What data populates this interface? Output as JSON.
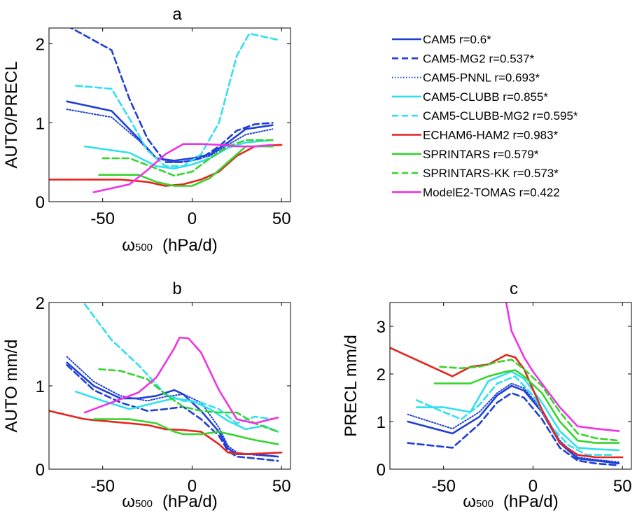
{
  "figure": {
    "legend": [
      {
        "label": "CAM5 r=0.6*",
        "color": "#1f3fd6",
        "style": "solid"
      },
      {
        "label": "CAM5-MG2 r=0.537*",
        "color": "#1f3fd6",
        "style": "dashed"
      },
      {
        "label": "CAM5-PNNL r=0.693*",
        "color": "#1f3fd6",
        "style": "dotted"
      },
      {
        "label": "CAM5-CLUBB r=0.855*",
        "color": "#2fe0f0",
        "style": "solid"
      },
      {
        "label": "CAM5-CLUBB-MG2 r=0.595*",
        "color": "#2fe0f0",
        "style": "dashed"
      },
      {
        "label": "ECHAM6-HAM2 r=0.983*",
        "color": "#e8231e",
        "style": "solid"
      },
      {
        "label": "SPRINTARS r=0.579*",
        "color": "#35d52c",
        "style": "solid"
      },
      {
        "label": "SPRINTARS-KK r=0.573*",
        "color": "#35d52c",
        "style": "dashed"
      },
      {
        "label": "ModelE2-TOMAS r=0.422",
        "color": "#f032e6",
        "style": "solid"
      }
    ]
  },
  "chart_data": [
    {
      "panel": "a",
      "type": "line",
      "title": "a",
      "xlabel_symbol": "ω",
      "xlabel_sub": "500",
      "xlabel_unit": "(hPa/d)",
      "ylabel": "AUTO/PRECL",
      "xlim": [
        -80,
        55
      ],
      "ylim": [
        0,
        2.2
      ],
      "xticks": [
        -50,
        0,
        50
      ],
      "yticks": [
        0,
        1,
        2
      ],
      "series": [
        {
          "name": "CAM5 r=0.6*",
          "x": [
            -70,
            -45,
            -30,
            -20,
            -10,
            0,
            10,
            20,
            30,
            45
          ],
          "y": [
            1.27,
            1.15,
            0.8,
            0.55,
            0.52,
            0.55,
            0.6,
            0.75,
            0.92,
            0.97
          ]
        },
        {
          "name": "CAM5-MG2 r=0.537*",
          "x": [
            -70,
            -45,
            -35,
            -25,
            -15,
            -5,
            5,
            15,
            25,
            35,
            45
          ],
          "y": [
            2.23,
            1.92,
            1.3,
            0.8,
            0.5,
            0.5,
            0.55,
            0.7,
            0.9,
            0.98,
            1.0
          ]
        },
        {
          "name": "CAM5-PNNL r=0.693*",
          "x": [
            -70,
            -45,
            -30,
            -20,
            -10,
            0,
            10,
            20,
            30,
            45
          ],
          "y": [
            1.17,
            1.07,
            0.78,
            0.55,
            0.5,
            0.52,
            0.58,
            0.72,
            0.85,
            0.92
          ]
        },
        {
          "name": "CAM5-CLUBB r=0.855*",
          "x": [
            -60,
            -35,
            -20,
            -10,
            0,
            10,
            20,
            30,
            45
          ],
          "y": [
            0.7,
            0.62,
            0.45,
            0.42,
            0.47,
            0.55,
            0.68,
            0.75,
            0.78
          ]
        },
        {
          "name": "CAM5-CLUBB-MG2 r=0.595*",
          "x": [
            -65,
            -45,
            -35,
            -25,
            -15,
            -5,
            5,
            15,
            25,
            32,
            48
          ],
          "y": [
            1.47,
            1.43,
            1.05,
            0.65,
            0.45,
            0.45,
            0.6,
            1.0,
            1.85,
            2.13,
            2.05
          ]
        },
        {
          "name": "ECHAM6-HAM2 r=0.983*",
          "x": [
            -80,
            -55,
            -40,
            -25,
            -15,
            -5,
            5,
            15,
            25,
            35,
            50
          ],
          "y": [
            0.28,
            0.28,
            0.28,
            0.25,
            0.2,
            0.22,
            0.28,
            0.38,
            0.58,
            0.7,
            0.72
          ]
        },
        {
          "name": "SPRINTARS r=0.579*",
          "x": [
            -52,
            -30,
            -20,
            -10,
            0,
            10,
            20,
            30,
            45
          ],
          "y": [
            0.34,
            0.34,
            0.25,
            0.2,
            0.2,
            0.3,
            0.5,
            0.7,
            0.7
          ]
        },
        {
          "name": "SPRINTARS-KK r=0.573*",
          "x": [
            -50,
            -35,
            -20,
            -10,
            0,
            10,
            20,
            30,
            45
          ],
          "y": [
            0.55,
            0.55,
            0.42,
            0.33,
            0.38,
            0.55,
            0.7,
            0.78,
            0.78
          ]
        },
        {
          "name": "ModelE2-TOMAS r=0.422",
          "x": [
            -55,
            -35,
            -25,
            -15,
            -5,
            5,
            15,
            25,
            35,
            45
          ],
          "y": [
            0.12,
            0.22,
            0.4,
            0.6,
            0.73,
            0.73,
            0.72,
            0.7,
            0.7,
            0.72
          ]
        }
      ]
    },
    {
      "panel": "b",
      "type": "line",
      "title": "b",
      "xlabel_symbol": "ω",
      "xlabel_sub": "500",
      "xlabel_unit": "(hPa/d)",
      "ylabel": "AUTO mm/d",
      "xlim": [
        -80,
        55
      ],
      "ylim": [
        0,
        2
      ],
      "xticks": [
        -50,
        0,
        50
      ],
      "yticks": [
        0,
        1,
        2
      ],
      "series": [
        {
          "name": "CAM5 r=0.6*",
          "x": [
            -70,
            -55,
            -40,
            -30,
            -20,
            -10,
            -5,
            5,
            15,
            20,
            25,
            35,
            48
          ],
          "y": [
            1.28,
            1.0,
            0.85,
            0.85,
            0.88,
            0.95,
            0.9,
            0.7,
            0.45,
            0.25,
            0.18,
            0.18,
            0.15
          ]
        },
        {
          "name": "CAM5-MG2 r=0.537*",
          "x": [
            -70,
            -55,
            -40,
            -25,
            -15,
            -5,
            5,
            15,
            20,
            25,
            35,
            48
          ],
          "y": [
            1.25,
            0.95,
            0.8,
            0.7,
            0.72,
            0.75,
            0.6,
            0.4,
            0.22,
            0.15,
            0.13,
            0.1
          ]
        },
        {
          "name": "CAM5-PNNL r=0.693*",
          "x": [
            -70,
            -55,
            -40,
            -25,
            -15,
            -5,
            5,
            15,
            20,
            25,
            35,
            48
          ],
          "y": [
            1.35,
            1.05,
            0.88,
            0.82,
            0.87,
            0.9,
            0.8,
            0.5,
            0.28,
            0.2,
            0.17,
            0.15
          ]
        },
        {
          "name": "CAM5-CLUBB r=0.855*",
          "x": [
            -65,
            -50,
            -35,
            -20,
            -10,
            0,
            10,
            20,
            30,
            40,
            48
          ],
          "y": [
            0.93,
            0.82,
            0.72,
            0.8,
            0.85,
            0.82,
            0.72,
            0.58,
            0.48,
            0.52,
            0.45
          ]
        },
        {
          "name": "CAM5-CLUBB-MG2 r=0.595*",
          "x": [
            -60,
            -45,
            -30,
            -15,
            -5,
            5,
            15,
            25,
            35,
            45
          ],
          "y": [
            1.98,
            1.55,
            1.25,
            0.9,
            0.82,
            0.8,
            0.72,
            0.55,
            0.63,
            0.6
          ]
        },
        {
          "name": "ECHAM6-HAM2 r=0.983*",
          "x": [
            -80,
            -60,
            -45,
            -35,
            -25,
            -15,
            -5,
            5,
            15,
            20,
            30,
            50
          ],
          "y": [
            0.7,
            0.6,
            0.57,
            0.55,
            0.53,
            0.48,
            0.47,
            0.45,
            0.3,
            0.2,
            0.18,
            0.2
          ]
        },
        {
          "name": "SPRINTARS r=0.579*",
          "x": [
            -55,
            -35,
            -20,
            -10,
            -5,
            5,
            15,
            25,
            35,
            48
          ],
          "y": [
            0.6,
            0.6,
            0.55,
            0.45,
            0.42,
            0.42,
            0.45,
            0.4,
            0.35,
            0.3
          ]
        },
        {
          "name": "SPRINTARS-KK r=0.573*",
          "x": [
            -52,
            -40,
            -25,
            -15,
            -5,
            5,
            15,
            25,
            35,
            48
          ],
          "y": [
            1.2,
            1.18,
            1.08,
            0.9,
            0.75,
            0.7,
            0.68,
            0.68,
            0.55,
            0.45
          ]
        },
        {
          "name": "ModelE2-TOMAS r=0.422",
          "x": [
            -60,
            -45,
            -30,
            -20,
            -10,
            -7,
            -2,
            5,
            15,
            25,
            35,
            48
          ],
          "y": [
            0.68,
            0.8,
            0.92,
            1.1,
            1.45,
            1.58,
            1.57,
            1.4,
            0.95,
            0.6,
            0.55,
            0.62
          ]
        }
      ]
    },
    {
      "panel": "c",
      "type": "line",
      "title": "c",
      "xlabel_symbol": "ω",
      "xlabel_sub": "500",
      "xlabel_unit": "(hPa/d)",
      "ylabel": "PRECL mm/d",
      "xlim": [
        -80,
        55
      ],
      "ylim": [
        0,
        3.5
      ],
      "xticks": [
        -50,
        0,
        50
      ],
      "yticks": [
        0,
        1,
        2,
        3
      ],
      "series": [
        {
          "name": "CAM5 r=0.6*",
          "x": [
            -70,
            -45,
            -30,
            -20,
            -12,
            -5,
            5,
            15,
            25,
            35,
            48
          ],
          "y": [
            1.0,
            0.75,
            1.1,
            1.55,
            1.75,
            1.65,
            1.2,
            0.55,
            0.22,
            0.18,
            0.12
          ]
        },
        {
          "name": "CAM5-MG2 r=0.537*",
          "x": [
            -70,
            -45,
            -30,
            -20,
            -12,
            -5,
            5,
            15,
            25,
            35,
            48
          ],
          "y": [
            0.55,
            0.45,
            0.95,
            1.4,
            1.6,
            1.5,
            1.05,
            0.45,
            0.18,
            0.12,
            0.08
          ]
        },
        {
          "name": "CAM5-PNNL r=0.693*",
          "x": [
            -70,
            -45,
            -30,
            -20,
            -12,
            -5,
            5,
            15,
            25,
            35,
            48
          ],
          "y": [
            1.15,
            0.85,
            1.2,
            1.6,
            1.8,
            1.7,
            1.25,
            0.6,
            0.25,
            0.2,
            0.15
          ]
        },
        {
          "name": "CAM5-CLUBB r=0.855*",
          "x": [
            -65,
            -50,
            -35,
            -25,
            -12,
            -5,
            5,
            15,
            25,
            35,
            48
          ],
          "y": [
            1.3,
            1.3,
            1.2,
            1.85,
            2.05,
            1.9,
            1.4,
            0.8,
            0.45,
            0.42,
            0.4
          ]
        },
        {
          "name": "CAM5-CLUBB-MG2 r=0.595*",
          "x": [
            -65,
            -50,
            -40,
            -30,
            -20,
            -10,
            0,
            10,
            20,
            30,
            45
          ],
          "y": [
            1.45,
            1.2,
            1.05,
            1.35,
            1.8,
            1.95,
            1.55,
            0.9,
            0.5,
            0.3,
            0.3
          ]
        },
        {
          "name": "ECHAM6-HAM2 r=0.983*",
          "x": [
            -80,
            -45,
            -35,
            -25,
            -15,
            -10,
            -5,
            5,
            15,
            25,
            35,
            50
          ],
          "y": [
            2.55,
            1.95,
            2.15,
            2.2,
            2.4,
            2.35,
            2.1,
            1.25,
            0.55,
            0.3,
            0.25,
            0.25
          ]
        },
        {
          "name": "SPRINTARS r=0.579*",
          "x": [
            -55,
            -35,
            -25,
            -15,
            -10,
            -5,
            5,
            15,
            25,
            35,
            48
          ],
          "y": [
            1.8,
            1.8,
            1.95,
            2.05,
            2.08,
            1.95,
            1.6,
            1.0,
            0.6,
            0.55,
            0.55
          ]
        },
        {
          "name": "SPRINTARS-KK r=0.573*",
          "x": [
            -52,
            -40,
            -30,
            -20,
            -12,
            -5,
            5,
            15,
            25,
            35,
            48
          ],
          "y": [
            2.15,
            2.12,
            2.15,
            2.25,
            2.3,
            2.1,
            1.75,
            1.2,
            0.75,
            0.65,
            0.6
          ]
        },
        {
          "name": "ModelE2-TOMAS r=0.422",
          "x": [
            -15,
            -12,
            -5,
            0,
            5,
            15,
            25,
            35,
            48
          ],
          "y": [
            3.5,
            2.9,
            2.35,
            2.05,
            1.8,
            1.3,
            0.9,
            0.85,
            0.8
          ]
        }
      ]
    }
  ]
}
